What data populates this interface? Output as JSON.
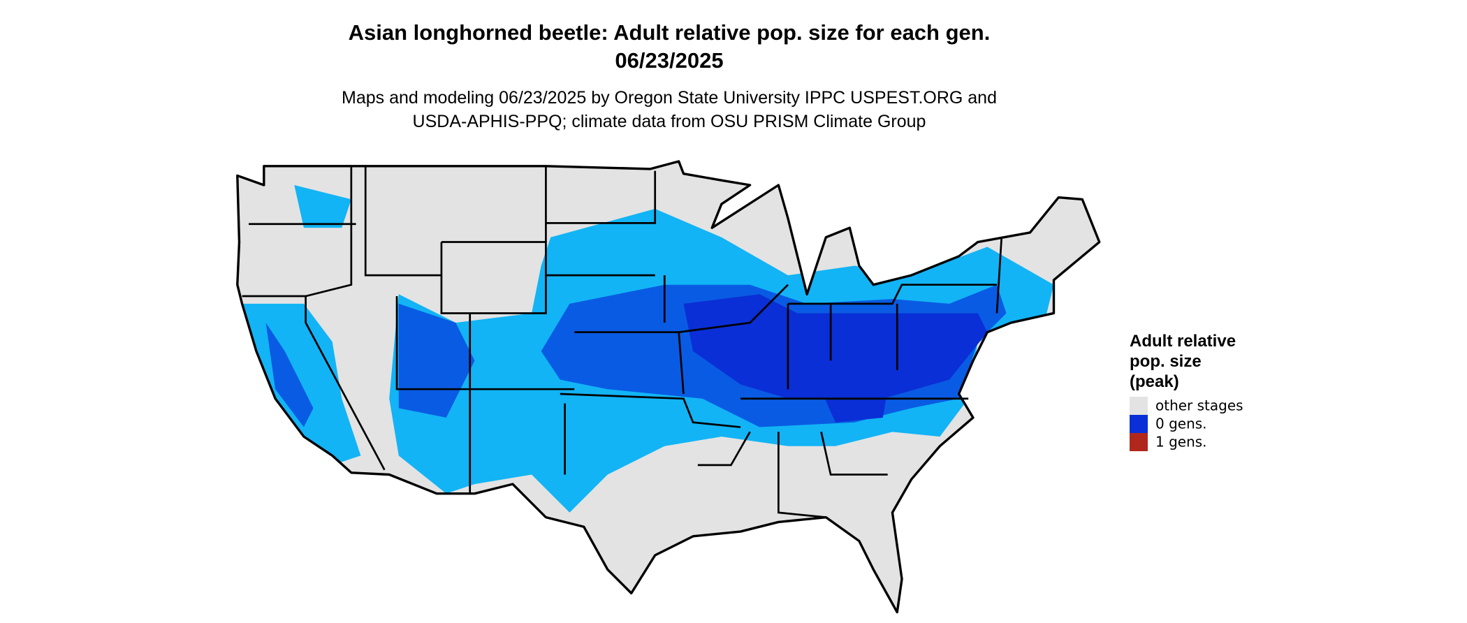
{
  "header": {
    "title_lines": [
      "Asian longhorned beetle: Adult relative pop. size for each gen.",
      "06/23/2025"
    ],
    "subtitle_lines": [
      "Maps and modeling 06/23/2025 by Oregon State University IPPC USPEST.ORG and",
      "USDA-APHIS-PPQ; climate data from OSU PRISM Climate Group"
    ]
  },
  "legend": {
    "title_lines": [
      "Adult relative",
      "pop. size",
      "(peak)"
    ],
    "items": [
      {
        "label": "other stages",
        "color": "#e3e3e3"
      },
      {
        "label": "0 gens.",
        "color": "#0a2fd6"
      },
      {
        "label": "1 gens.",
        "color": "#b0281c"
      }
    ]
  }
}
